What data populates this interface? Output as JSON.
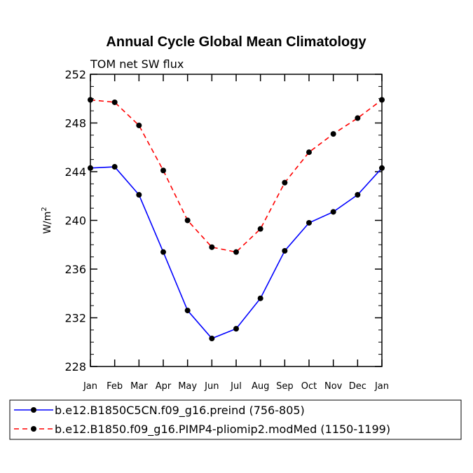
{
  "chart_data": {
    "type": "line",
    "title": "Annual Cycle Global Mean Climatology",
    "subtitle": "TOM net SW flux",
    "xlabel": "",
    "ylabel": "W/m",
    "ylabel_superscript": "2",
    "categories": [
      "Jan",
      "Feb",
      "Mar",
      "Apr",
      "May",
      "Jun",
      "Jul",
      "Aug",
      "Sep",
      "Oct",
      "Nov",
      "Dec",
      "Jan"
    ],
    "ylim": [
      228,
      252
    ],
    "yticks": [
      228,
      232,
      236,
      240,
      244,
      248,
      252
    ],
    "yminor_step": 1,
    "grid": false,
    "series": [
      {
        "name": "b.e12.B1850C5CN.f09_g16.preind (756-805)",
        "color": "#0000ff",
        "dash": "solid",
        "values": [
          244.3,
          244.4,
          242.1,
          237.4,
          232.6,
          230.3,
          231.1,
          233.6,
          237.5,
          239.8,
          240.7,
          242.1,
          244.3
        ]
      },
      {
        "name": "b.e12.B1850.f09_g16.PIMP4-pliomip2.modMed (1150-1199)",
        "color": "#ff0000",
        "dash": "dashed",
        "values": [
          249.9,
          249.7,
          247.8,
          244.1,
          240.0,
          237.8,
          237.4,
          239.3,
          243.1,
          245.6,
          247.1,
          248.4,
          249.9
        ]
      }
    ],
    "legend_position": "bottom-left"
  }
}
